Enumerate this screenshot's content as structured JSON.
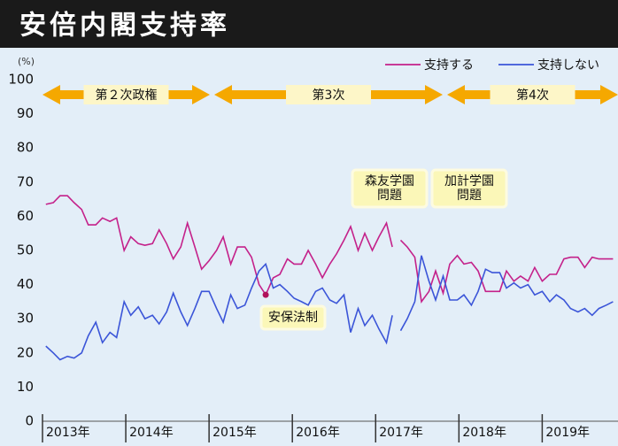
{
  "chart_data": {
    "type": "line",
    "title": "安倍内閣支持率",
    "y_label": "(%)",
    "x": [
      2013.04,
      2013.13,
      2013.21,
      2013.3,
      2013.38,
      2013.47,
      2013.55,
      2013.64,
      2013.72,
      2013.81,
      2013.89,
      2013.98,
      2014.06,
      2014.15,
      2014.23,
      2014.32,
      2014.4,
      2014.49,
      2014.57,
      2014.66,
      2014.74,
      2014.83,
      2014.91,
      2015.0,
      2015.09,
      2015.17,
      2015.26,
      2015.34,
      2015.43,
      2015.51,
      2015.6,
      2015.68,
      2015.77,
      2015.85,
      2015.94,
      2016.02,
      2016.11,
      2016.19,
      2016.28,
      2016.36,
      2016.45,
      2016.53,
      2016.62,
      2016.7,
      2016.79,
      2016.87,
      2016.96,
      2017.04,
      2017.13,
      2017.2,
      2017.25,
      2017.3,
      2017.38,
      2017.47,
      2017.55,
      2017.64,
      2017.72,
      2017.81,
      2017.89,
      2017.98,
      2018.06,
      2018.15,
      2018.23,
      2018.32,
      2018.4,
      2018.49,
      2018.57,
      2018.66,
      2018.74,
      2018.83,
      2018.91,
      2019.0,
      2019.09,
      2019.17,
      2019.26,
      2019.34,
      2019.43,
      2019.51,
      2019.6,
      2019.68,
      2019.77,
      2019.85
    ],
    "series": [
      {
        "name": "支持する",
        "color": "#c4218a",
        "values": [
          63.5,
          64,
          66,
          66,
          64,
          62,
          57.5,
          57.5,
          59.5,
          58.5,
          59.5,
          50,
          54,
          52,
          51.5,
          52,
          56,
          52,
          47.5,
          51,
          58,
          51,
          44.5,
          47,
          50,
          54,
          46,
          51,
          51,
          48,
          40,
          37,
          42,
          43,
          47.5,
          46,
          46,
          50,
          46,
          42,
          46,
          49,
          53,
          57,
          50,
          55,
          50,
          54,
          58,
          51,
          null,
          53,
          51,
          48,
          35,
          38,
          44,
          37.5,
          46,
          48.5,
          46,
          46.5,
          44,
          38,
          38,
          38,
          44,
          41,
          42.5,
          41,
          45,
          41,
          43,
          43,
          47.5,
          48,
          48,
          45,
          48,
          47.5,
          47.5,
          47.5
        ]
      },
      {
        "name": "支持しない",
        "color": "#3b55d8",
        "values": [
          22,
          20,
          18,
          19,
          18.5,
          20,
          25,
          29,
          23,
          26,
          24.5,
          35,
          31,
          33.5,
          30,
          31,
          28.5,
          32,
          37.5,
          32,
          28,
          33,
          38,
          38,
          33,
          29,
          37,
          33,
          34,
          39,
          44,
          46,
          39,
          40,
          38,
          36,
          35,
          34,
          38,
          39,
          35.5,
          34.5,
          37,
          26,
          33,
          28,
          31,
          27,
          23,
          31,
          null,
          26.5,
          30,
          35,
          48.5,
          41,
          35.5,
          42.5,
          35.5,
          35.5,
          37,
          34,
          38,
          44.5,
          43.5,
          43.5,
          39,
          40.5,
          39,
          40,
          37,
          38,
          35,
          37,
          35.5,
          33,
          32,
          33,
          31,
          33,
          34,
          35
        ]
      }
    ],
    "xlim": [
      2013,
      2019.91
    ],
    "xticks": [
      {
        "value": 2013,
        "label": "2013年"
      },
      {
        "value": 2014,
        "label": "2014年"
      },
      {
        "value": 2015,
        "label": "2015年"
      },
      {
        "value": 2016,
        "label": "2016年"
      },
      {
        "value": 2017,
        "label": "2017年"
      },
      {
        "value": 2018,
        "label": "2018年"
      },
      {
        "value": 2019,
        "label": "2019年"
      }
    ],
    "ylim": [
      0,
      100
    ],
    "yticks": [
      0,
      10,
      20,
      30,
      40,
      50,
      60,
      70,
      80,
      90,
      100
    ],
    "grid": false,
    "legend": "top-right",
    "periods": [
      "第２次政権",
      "第3次",
      "第4次"
    ],
    "annotations": [
      {
        "lines": [
          "安保法制"
        ]
      },
      {
        "lines": [
          "森友学園",
          "問題"
        ]
      },
      {
        "lines": [
          "加計学園",
          "問題"
        ]
      }
    ]
  }
}
